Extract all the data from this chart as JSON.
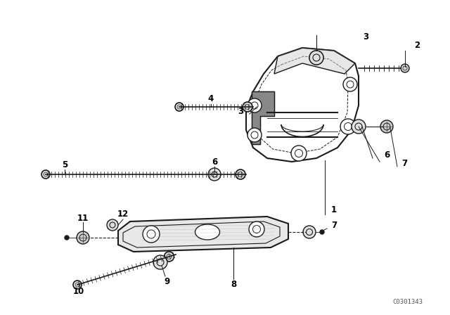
{
  "bg_color": "#ffffff",
  "line_color": "#1a1a1a",
  "fig_width": 6.4,
  "fig_height": 4.48,
  "dpi": 100,
  "watermark": "C0301343"
}
